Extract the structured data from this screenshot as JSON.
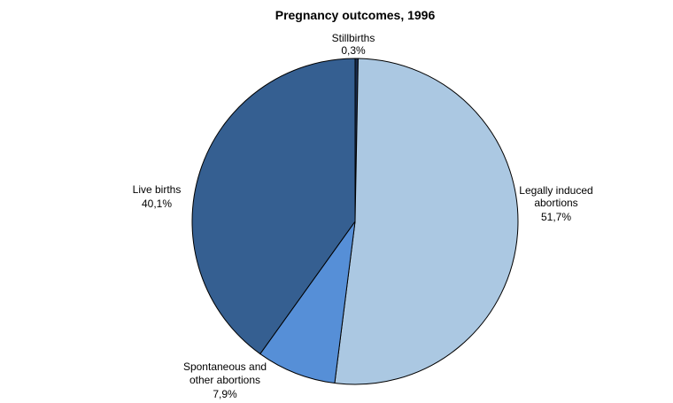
{
  "chart_data": {
    "type": "pie",
    "title": "Pregnancy outcomes, 1996",
    "start": "top",
    "direction": "clockwise",
    "slices": [
      {
        "name": "Stillbirths",
        "value_label": "0,3%",
        "value": 0.3,
        "color": "#1a2e50"
      },
      {
        "name": "Legally induced abortions",
        "label_lines": [
          "Legally induced",
          "abortions"
        ],
        "value_label": "51,7%",
        "value": 51.7,
        "color": "#abc8e2"
      },
      {
        "name": "Spontaneous and other abortions",
        "label_lines": [
          "Spontaneous and",
          "other abortions"
        ],
        "value_label": "7,9%",
        "value": 7.9,
        "color": "#568fd7"
      },
      {
        "name": "Live births",
        "value_label": "40,1%",
        "value": 40.1,
        "color": "#355f91"
      }
    ],
    "legend": "none",
    "outline_color": "#000000"
  }
}
